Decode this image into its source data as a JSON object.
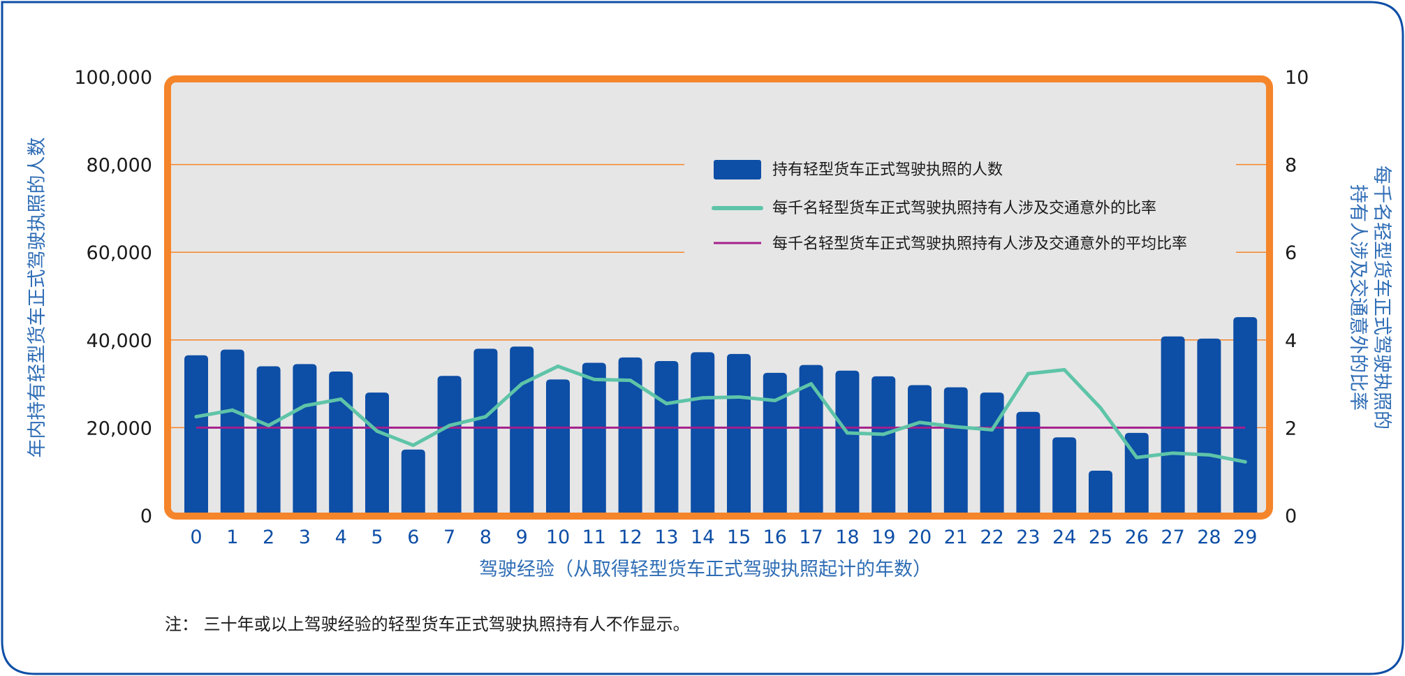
{
  "colors": {
    "border": "#0d4ea6",
    "plot_frame": "#f5852a",
    "plot_bg": "#e6e6e6",
    "gridline": "#f5852a",
    "bar": "#0d4ea6",
    "rate_line": "#5ec4a8",
    "avg_line": "#a3208c",
    "axis_title": "#2f6db5",
    "x_tick": "#0d4ea6"
  },
  "note": "注： 三十年或以上驾驶经验的轻型货车正式驾驶执照持有人不作显示。",
  "chart_data": {
    "type": "bar",
    "title": "",
    "xlabel": "驾驶经验（从取得轻型货车正式驾驶执照起计的年数）",
    "ylabel": "年内持有轻型货车正式驾驶执照的人数",
    "y2label_lines": [
      "每千名轻型货车正式驾驶执照的",
      "持有人涉及交通意外的比率"
    ],
    "categories": [
      "0",
      "1",
      "2",
      "3",
      "4",
      "5",
      "6",
      "7",
      "8",
      "9",
      "10",
      "11",
      "12",
      "13",
      "14",
      "15",
      "16",
      "17",
      "18",
      "19",
      "20",
      "21",
      "22",
      "23",
      "24",
      "25",
      "26",
      "27",
      "28",
      "29"
    ],
    "ylim": [
      0,
      100000
    ],
    "y_ticks": [
      "0",
      "20,000",
      "40,000",
      "60,000",
      "80,000",
      "100,000"
    ],
    "y2lim": [
      0,
      10
    ],
    "y2_ticks": [
      "0",
      "2",
      "4",
      "6",
      "8",
      "10"
    ],
    "grid": true,
    "legend_position": "top-right",
    "series": [
      {
        "name": "持有轻型货车正式驾驶执照的人数",
        "type": "bar",
        "axis": "left",
        "values": [
          36500,
          37800,
          34000,
          34500,
          32800,
          28000,
          15000,
          31800,
          38000,
          38500,
          31000,
          34800,
          36000,
          35200,
          37200,
          36800,
          32500,
          34300,
          33000,
          31700,
          29700,
          29200,
          28000,
          23600,
          17800,
          10200,
          18800,
          40800,
          40300,
          45200
        ]
      },
      {
        "name": "每千名轻型货车正式驾驶执照持有人涉及交通意外的比率",
        "type": "line",
        "axis": "right",
        "values": [
          2.25,
          2.4,
          2.05,
          2.5,
          2.65,
          1.92,
          1.6,
          2.05,
          2.25,
          3.0,
          3.4,
          3.1,
          3.08,
          2.55,
          2.68,
          2.7,
          2.62,
          3.0,
          1.88,
          1.85,
          2.12,
          2.02,
          1.95,
          3.23,
          3.32,
          2.45,
          1.32,
          1.42,
          1.38,
          1.22
        ]
      },
      {
        "name": "每千名轻型货车正式驾驶执照持有人涉及交通意外的平均比率",
        "type": "line",
        "axis": "right",
        "values": [
          2.0,
          2.0,
          2.0,
          2.0,
          2.0,
          2.0,
          2.0,
          2.0,
          2.0,
          2.0,
          2.0,
          2.0,
          2.0,
          2.0,
          2.0,
          2.0,
          2.0,
          2.0,
          2.0,
          2.0,
          2.0,
          2.0,
          2.0,
          2.0,
          2.0,
          2.0,
          2.0,
          2.0,
          2.0,
          2.0
        ]
      }
    ]
  }
}
